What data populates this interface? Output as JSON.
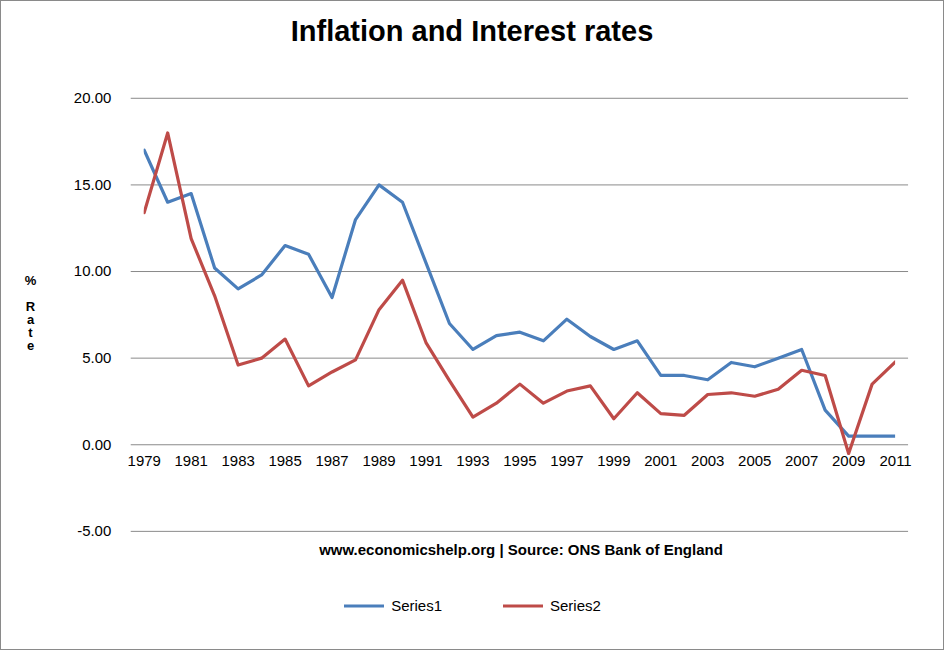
{
  "chart_data": {
    "type": "line",
    "title": "Inflation and Interest rates",
    "ylabel": "% Rate",
    "caption": "www.economicshelp.org | Source: ONS Bank of England",
    "x": [
      1979,
      1980,
      1981,
      1982,
      1983,
      1984,
      1985,
      1986,
      1987,
      1988,
      1989,
      1990,
      1991,
      1992,
      1993,
      1994,
      1995,
      1996,
      1997,
      1998,
      1999,
      2000,
      2001,
      2002,
      2003,
      2004,
      2005,
      2006,
      2007,
      2008,
      2009,
      2010,
      2011
    ],
    "series": [
      {
        "name": "Series1",
        "color": "#4a7ebb",
        "values": [
          17.0,
          14.0,
          14.5,
          10.2,
          9.0,
          9.8,
          11.5,
          11.0,
          8.5,
          13.0,
          15.0,
          14.0,
          10.5,
          7.0,
          5.5,
          6.3,
          6.5,
          6.0,
          7.25,
          6.25,
          5.5,
          6.0,
          4.0,
          4.0,
          3.75,
          4.75,
          4.5,
          5.0,
          5.5,
          2.0,
          0.5,
          0.5,
          0.5
        ]
      },
      {
        "name": "Series2",
        "color": "#be4b48",
        "values": [
          13.4,
          18.0,
          11.9,
          8.6,
          4.6,
          5.0,
          6.1,
          3.4,
          4.2,
          4.9,
          7.8,
          9.5,
          5.9,
          3.7,
          1.6,
          2.4,
          3.5,
          2.4,
          3.1,
          3.4,
          1.5,
          3.0,
          1.8,
          1.7,
          2.9,
          3.0,
          2.8,
          3.2,
          4.3,
          4.0,
          -0.5,
          3.5,
          4.8
        ]
      }
    ],
    "xlim": [
      1979,
      2011
    ],
    "xticks": [
      1979,
      1981,
      1983,
      1985,
      1987,
      1989,
      1991,
      1993,
      1995,
      1997,
      1999,
      2001,
      2003,
      2005,
      2007,
      2009,
      2011
    ],
    "ylim": [
      -5,
      20
    ],
    "yticks": [
      {
        "value": -5,
        "label": "-5.00"
      },
      {
        "value": 0,
        "label": "0.00"
      },
      {
        "value": 5,
        "label": "5.00"
      },
      {
        "value": 10,
        "label": "10.00"
      },
      {
        "value": 15,
        "label": "15.00"
      },
      {
        "value": 20,
        "label": "20.00"
      }
    ],
    "grid": true,
    "legend": "bottom"
  }
}
